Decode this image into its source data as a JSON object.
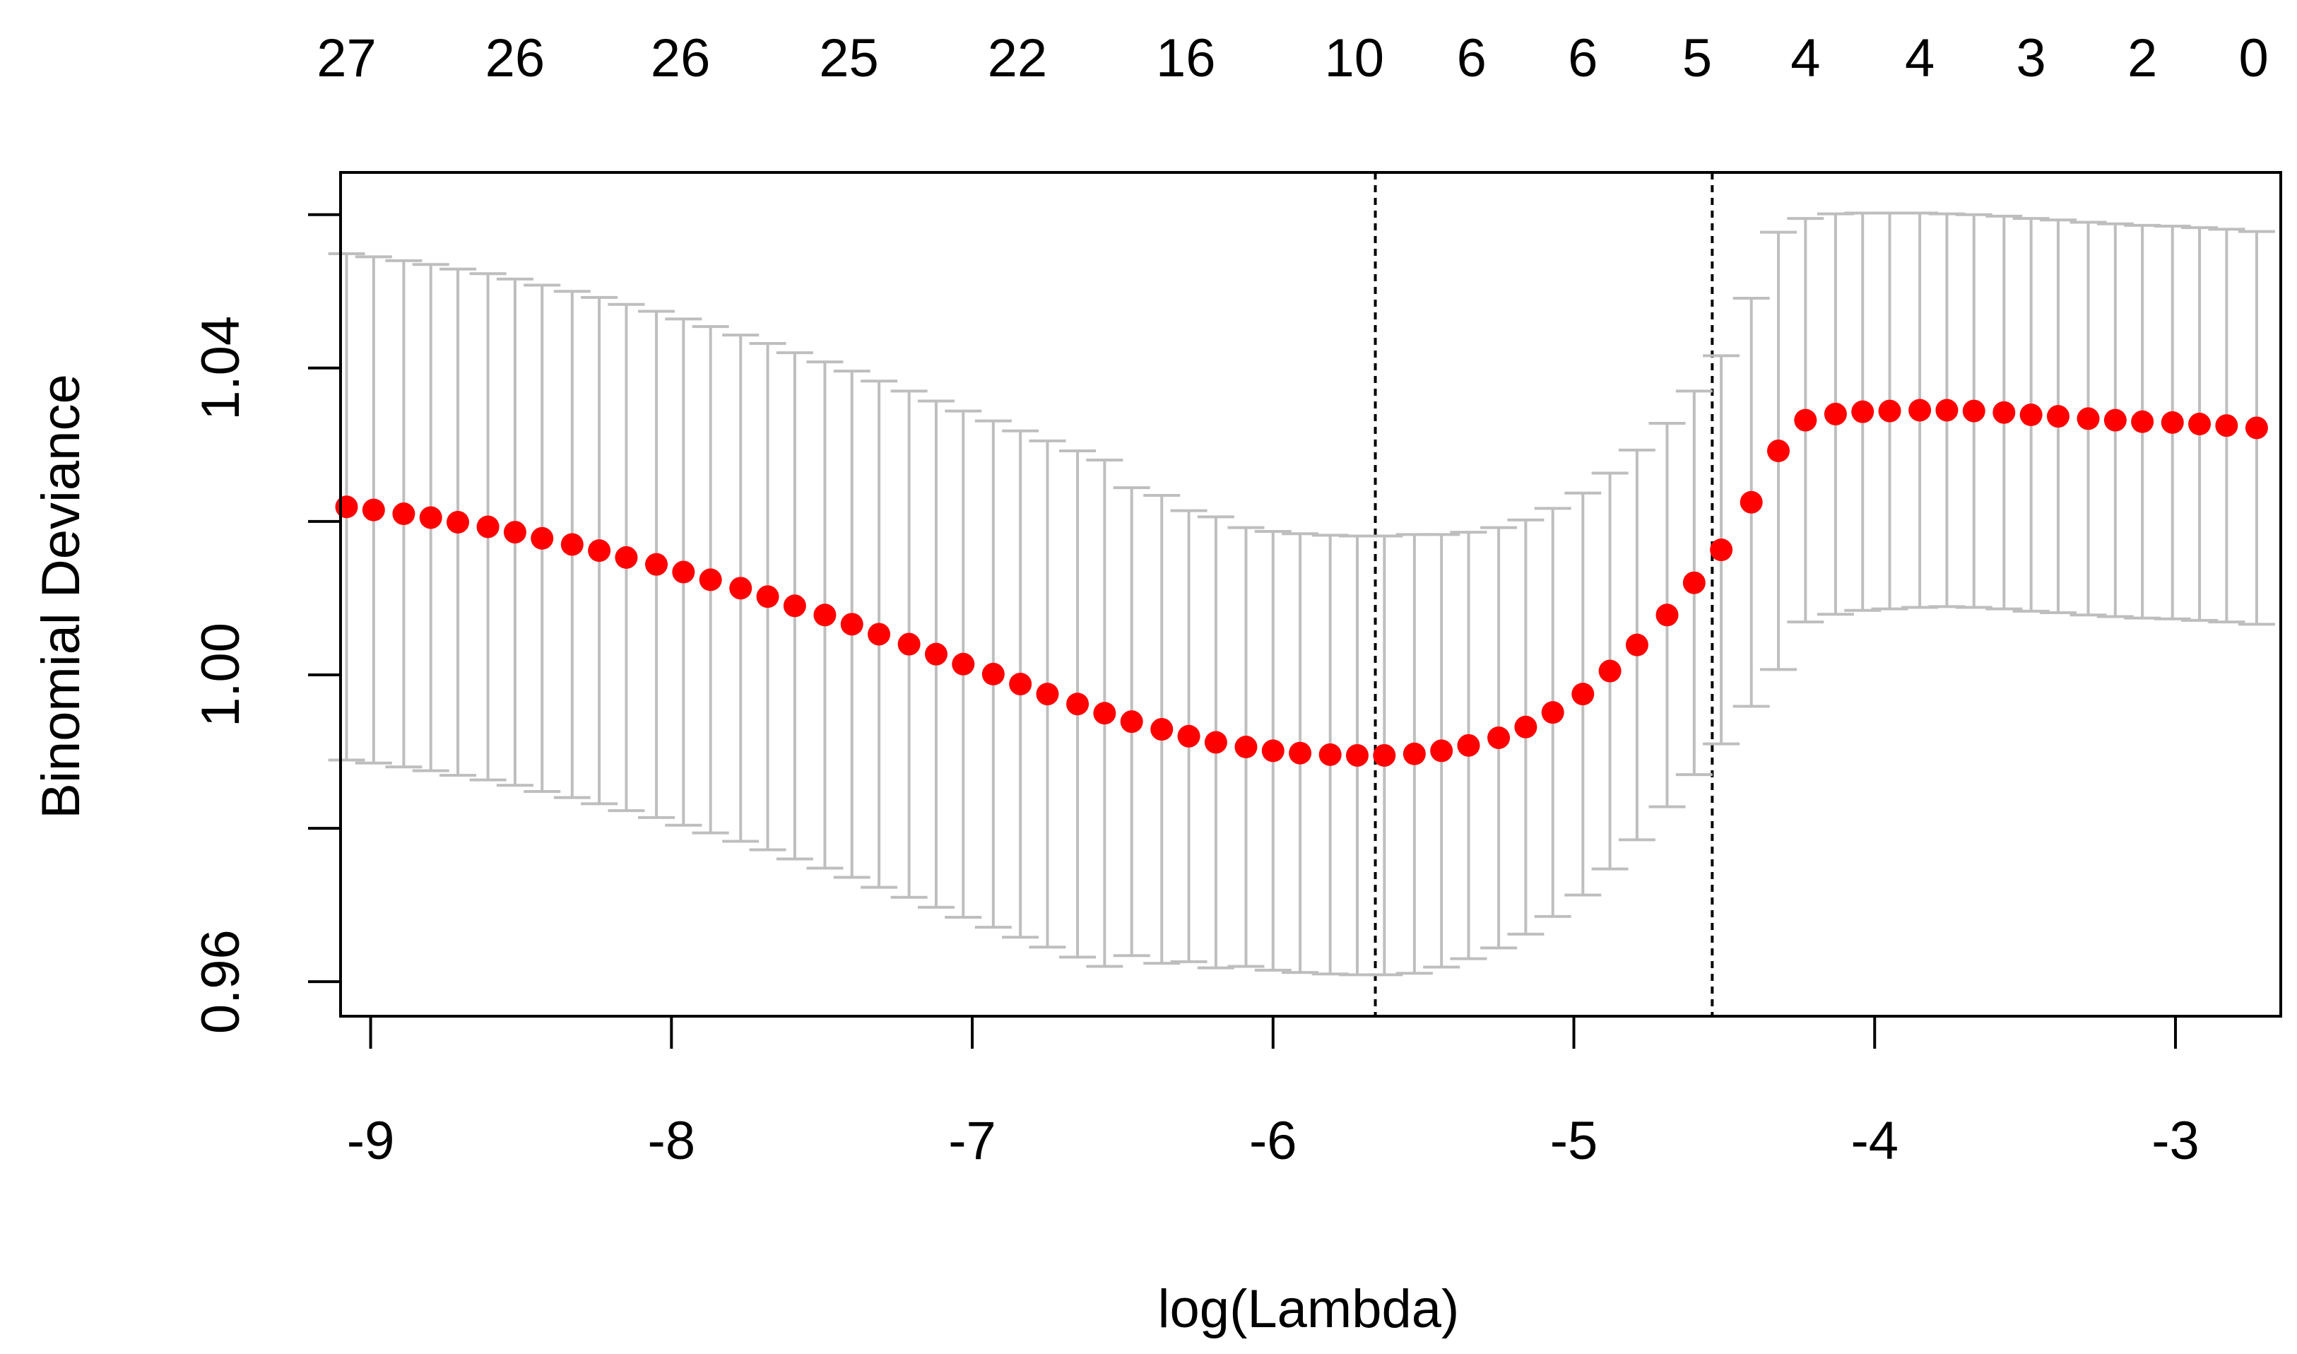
{
  "chart_data": {
    "type": "scatter",
    "title": "",
    "xlabel": "log(Lambda)",
    "ylabel": "Binomial Deviance",
    "xlim": [
      -9.1,
      -2.65
    ],
    "ylim": [
      0.9555,
      1.0655
    ],
    "x_ticks": [
      "-9",
      "-8",
      "-7",
      "-6",
      "-5",
      "-4",
      "-3"
    ],
    "y_ticks": [
      "0.96",
      "1.00",
      "1.04"
    ],
    "top_axis": {
      "positions": [
        -9.08,
        -8.52,
        -7.97,
        -7.41,
        -6.85,
        -6.29,
        -5.73,
        -5.34,
        -4.97,
        -4.59,
        -4.23,
        -3.85,
        -3.48,
        -3.11,
        -2.74
      ],
      "labels": [
        "27",
        "26",
        "26",
        "25",
        "22",
        "16",
        "10",
        "6",
        "6",
        "5",
        "4",
        "4",
        "3",
        "2",
        "0"
      ]
    },
    "reference_lines_x": [
      -5.66,
      -4.54
    ],
    "series": [
      {
        "color": "#ff0000",
        "errorbar_color": "#bebebe",
        "x": [
          -9.08,
          -8.99,
          -8.89,
          -8.8,
          -8.71,
          -8.61,
          -8.52,
          -8.43,
          -8.33,
          -8.24,
          -8.15,
          -8.05,
          -7.96,
          -7.87,
          -7.77,
          -7.68,
          -7.59,
          -7.49,
          -7.4,
          -7.31,
          -7.21,
          -7.12,
          -7.03,
          -6.93,
          -6.84,
          -6.75,
          -6.65,
          -6.56,
          -6.47,
          -6.37,
          -6.28,
          -6.19,
          -6.09,
          -6.0,
          -5.91,
          -5.81,
          -5.72,
          -5.63,
          -5.53,
          -5.44,
          -5.35,
          -5.25,
          -5.16,
          -5.07,
          -4.97,
          -4.88,
          -4.79,
          -4.69,
          -4.6,
          -4.51,
          -4.41,
          -4.32,
          -4.23,
          -4.13,
          -4.04,
          -3.95,
          -3.85,
          -3.76,
          -3.67,
          -3.57,
          -3.48,
          -3.39,
          -3.29,
          -3.2,
          -3.11,
          -3.01,
          -2.92,
          -2.83,
          -2.73
        ],
        "y": [
          1.0219,
          1.0215,
          1.021,
          1.0205,
          1.0199,
          1.0193,
          1.0186,
          1.0178,
          1.017,
          1.0162,
          1.0153,
          1.0144,
          1.0134,
          1.0124,
          1.0113,
          1.0102,
          1.009,
          1.0078,
          1.0066,
          1.0053,
          1.004,
          1.0027,
          1.0014,
          1.0001,
          0.9988,
          0.9975,
          0.9962,
          0.995,
          0.9939,
          0.9929,
          0.992,
          0.9912,
          0.9906,
          0.9901,
          0.9898,
          0.9896,
          0.9895,
          0.9895,
          0.9897,
          0.9901,
          0.9908,
          0.9918,
          0.9932,
          0.9951,
          0.9975,
          1.0005,
          1.0039,
          1.0078,
          1.012,
          1.0163,
          1.0225,
          1.0292,
          1.0332,
          1.034,
          1.0343,
          1.0344,
          1.0345,
          1.0345,
          1.0344,
          1.0342,
          1.0339,
          1.0337,
          1.0334,
          1.0332,
          1.033,
          1.0329,
          1.0327,
          1.0325,
          1.0322
        ],
        "se": [
          0.033,
          0.033,
          0.033,
          0.033,
          0.033,
          0.033,
          0.033,
          0.033,
          0.033,
          0.033,
          0.033,
          0.033,
          0.033,
          0.033,
          0.033,
          0.033,
          0.033,
          0.033,
          0.033,
          0.033,
          0.033,
          0.033,
          0.033,
          0.033,
          0.033,
          0.033,
          0.033,
          0.033,
          0.0305,
          0.0305,
          0.0294,
          0.0294,
          0.0286,
          0.0286,
          0.0286,
          0.0286,
          0.0286,
          0.0286,
          0.0286,
          0.0282,
          0.0278,
          0.0274,
          0.027,
          0.0266,
          0.0262,
          0.0258,
          0.0254,
          0.025,
          0.025,
          0.0253,
          0.0266,
          0.0285,
          0.0263,
          0.0261,
          0.0259,
          0.0258,
          0.0257,
          0.0256,
          0.0256,
          0.0256,
          0.0256,
          0.0256,
          0.0256,
          0.0256,
          0.0256,
          0.0256,
          0.0256,
          0.0256,
          0.0256
        ]
      }
    ]
  }
}
